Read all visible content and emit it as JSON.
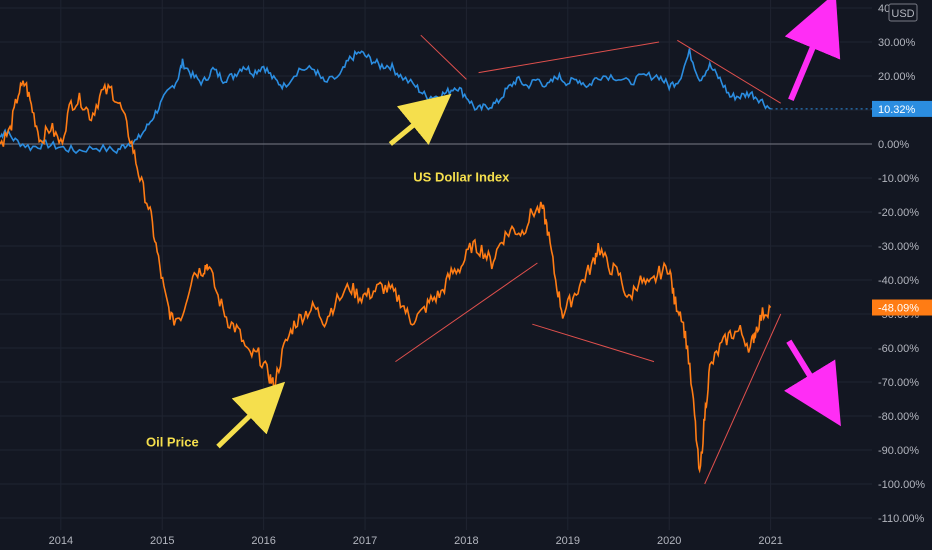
{
  "chart_data": {
    "type": "line",
    "currency": "USD",
    "colors": {
      "background": "#131722",
      "grid": "#1f2431",
      "zero_line": "#787b86",
      "dollar": "#2b8de0",
      "oil": "#ff7c14",
      "trendline": "#e0504d",
      "annotation_arrow": "#f5df4d",
      "forecast_arrow": "#ff2df5"
    },
    "y_axis": {
      "ylim": [
        -110,
        40
      ],
      "ticks": [
        40,
        30,
        20,
        10,
        0,
        -10,
        -20,
        -30,
        -40,
        -50,
        -60,
        -70,
        -80,
        -90,
        -100,
        -110
      ],
      "tick_labels": [
        "40.00%",
        "30.00%",
        "20.00%",
        "10.00%",
        "0.00%",
        "-10.00%",
        "-20.00%",
        "-30.00%",
        "-40.00%",
        "-50.00%",
        "-60.00%",
        "-70.00%",
        "-80.00%",
        "-90.00%",
        "-100.00%",
        "-110.00%"
      ]
    },
    "x_axis": {
      "xlim": [
        2013.4,
        2022.0
      ],
      "ticks": [
        2014,
        2015,
        2016,
        2017,
        2018,
        2019,
        2020,
        2021
      ],
      "tick_labels": [
        "2014",
        "2015",
        "2016",
        "2017",
        "2018",
        "2019",
        "2020",
        "2021"
      ]
    },
    "series": [
      {
        "name": "US Dollar Index",
        "color": "#2b8de0",
        "last_value_label": "10.32%",
        "last_value": 10.32,
        "points": [
          [
            2013.4,
            2
          ],
          [
            2013.45,
            4
          ],
          [
            2013.55,
            1
          ],
          [
            2013.7,
            -1
          ],
          [
            2013.85,
            0
          ],
          [
            2014.0,
            -1
          ],
          [
            2014.15,
            -2
          ],
          [
            2014.35,
            -1
          ],
          [
            2014.55,
            -2
          ],
          [
            2014.65,
            0
          ],
          [
            2014.75,
            1
          ],
          [
            2014.85,
            5
          ],
          [
            2014.95,
            10
          ],
          [
            2015.05,
            15
          ],
          [
            2015.15,
            19
          ],
          [
            2015.2,
            24
          ],
          [
            2015.3,
            20
          ],
          [
            2015.4,
            18
          ],
          [
            2015.5,
            22
          ],
          [
            2015.6,
            19
          ],
          [
            2015.7,
            20
          ],
          [
            2015.8,
            23
          ],
          [
            2015.9,
            21
          ],
          [
            2016.0,
            23
          ],
          [
            2016.1,
            19
          ],
          [
            2016.2,
            17
          ],
          [
            2016.35,
            22
          ],
          [
            2016.5,
            22
          ],
          [
            2016.6,
            18
          ],
          [
            2016.75,
            20
          ],
          [
            2016.85,
            25
          ],
          [
            2016.95,
            27
          ],
          [
            2017.05,
            25
          ],
          [
            2017.15,
            23
          ],
          [
            2017.25,
            23
          ],
          [
            2017.35,
            20
          ],
          [
            2017.5,
            17
          ],
          [
            2017.6,
            14
          ],
          [
            2017.7,
            14
          ],
          [
            2017.8,
            15
          ],
          [
            2017.9,
            17
          ],
          [
            2018.0,
            14
          ],
          [
            2018.1,
            10
          ],
          [
            2018.2,
            11
          ],
          [
            2018.3,
            12
          ],
          [
            2018.4,
            16
          ],
          [
            2018.5,
            19
          ],
          [
            2018.6,
            17
          ],
          [
            2018.7,
            19
          ],
          [
            2018.8,
            17
          ],
          [
            2018.9,
            20
          ],
          [
            2019.0,
            18
          ],
          [
            2019.1,
            19
          ],
          [
            2019.2,
            17
          ],
          [
            2019.3,
            20
          ],
          [
            2019.45,
            20
          ],
          [
            2019.6,
            18
          ],
          [
            2019.75,
            20
          ],
          [
            2019.9,
            20
          ],
          [
            2020.0,
            17
          ],
          [
            2020.1,
            19
          ],
          [
            2020.2,
            27
          ],
          [
            2020.3,
            19
          ],
          [
            2020.4,
            23
          ],
          [
            2020.5,
            19
          ],
          [
            2020.6,
            14
          ],
          [
            2020.7,
            14
          ],
          [
            2020.8,
            15
          ],
          [
            2020.9,
            13
          ],
          [
            2021.0,
            10.3
          ]
        ]
      },
      {
        "name": "Oil Price",
        "color": "#ff7c14",
        "last_value_label": "-48.09%",
        "last_value": -48.09,
        "points": [
          [
            2013.4,
            0
          ],
          [
            2013.5,
            4
          ],
          [
            2013.58,
            15
          ],
          [
            2013.65,
            18
          ],
          [
            2013.72,
            10
          ],
          [
            2013.8,
            1
          ],
          [
            2013.9,
            5
          ],
          [
            2014.0,
            0
          ],
          [
            2014.1,
            12
          ],
          [
            2014.2,
            13
          ],
          [
            2014.3,
            8
          ],
          [
            2014.4,
            15
          ],
          [
            2014.5,
            16
          ],
          [
            2014.6,
            10
          ],
          [
            2014.7,
            0
          ],
          [
            2014.78,
            -10
          ],
          [
            2014.88,
            -20
          ],
          [
            2014.95,
            -32
          ],
          [
            2015.03,
            -45
          ],
          [
            2015.1,
            -52
          ],
          [
            2015.2,
            -50
          ],
          [
            2015.3,
            -38
          ],
          [
            2015.4,
            -37
          ],
          [
            2015.45,
            -35
          ],
          [
            2015.55,
            -45
          ],
          [
            2015.65,
            -52
          ],
          [
            2015.75,
            -55
          ],
          [
            2015.85,
            -62
          ],
          [
            2015.95,
            -62
          ],
          [
            2016.05,
            -68
          ],
          [
            2016.1,
            -71
          ],
          [
            2016.2,
            -60
          ],
          [
            2016.3,
            -53
          ],
          [
            2016.4,
            -50
          ],
          [
            2016.5,
            -48
          ],
          [
            2016.6,
            -52
          ],
          [
            2016.7,
            -47
          ],
          [
            2016.85,
            -42
          ],
          [
            2016.95,
            -45
          ],
          [
            2017.05,
            -44
          ],
          [
            2017.15,
            -42
          ],
          [
            2017.25,
            -43
          ],
          [
            2017.35,
            -46
          ],
          [
            2017.45,
            -52
          ],
          [
            2017.55,
            -50
          ],
          [
            2017.65,
            -46
          ],
          [
            2017.75,
            -44
          ],
          [
            2017.85,
            -38
          ],
          [
            2017.95,
            -36
          ],
          [
            2018.05,
            -30
          ],
          [
            2018.15,
            -31
          ],
          [
            2018.25,
            -35
          ],
          [
            2018.35,
            -28
          ],
          [
            2018.45,
            -25
          ],
          [
            2018.55,
            -26
          ],
          [
            2018.65,
            -20
          ],
          [
            2018.75,
            -19
          ],
          [
            2018.8,
            -25
          ],
          [
            2018.88,
            -40
          ],
          [
            2018.95,
            -50
          ],
          [
            2019.05,
            -45
          ],
          [
            2019.15,
            -40
          ],
          [
            2019.25,
            -35
          ],
          [
            2019.3,
            -30
          ],
          [
            2019.4,
            -36
          ],
          [
            2019.5,
            -38
          ],
          [
            2019.6,
            -46
          ],
          [
            2019.7,
            -40
          ],
          [
            2019.8,
            -42
          ],
          [
            2019.9,
            -38
          ],
          [
            2020.0,
            -36
          ],
          [
            2020.05,
            -46
          ],
          [
            2020.12,
            -50
          ],
          [
            2020.18,
            -60
          ],
          [
            2020.25,
            -80
          ],
          [
            2020.3,
            -98
          ],
          [
            2020.35,
            -80
          ],
          [
            2020.4,
            -66
          ],
          [
            2020.5,
            -60
          ],
          [
            2020.6,
            -56
          ],
          [
            2020.7,
            -55
          ],
          [
            2020.8,
            -60
          ],
          [
            2020.85,
            -55
          ],
          [
            2020.92,
            -50
          ],
          [
            2021.0,
            -48.1
          ]
        ]
      }
    ],
    "annotations": [
      {
        "text": "US Dollar Index",
        "x": 2017.95,
        "y": -11,
        "arrow_from": [
          2017.25,
          0
        ],
        "arrow_to": [
          2017.7,
          11
        ]
      },
      {
        "text": "Oil Price",
        "x": 2015.1,
        "y": -89,
        "arrow_from": [
          2015.55,
          -89
        ],
        "arrow_to": [
          2016.07,
          -74
        ]
      }
    ],
    "trendlines": [
      {
        "from": [
          2017.55,
          32
        ],
        "to": [
          2018.0,
          19
        ]
      },
      {
        "from": [
          2018.12,
          21
        ],
        "to": [
          2019.9,
          30
        ]
      },
      {
        "from": [
          2020.08,
          30.5
        ],
        "to": [
          2021.1,
          12
        ]
      },
      {
        "from": [
          2017.3,
          -64
        ],
        "to": [
          2018.7,
          -35
        ]
      },
      {
        "from": [
          2018.65,
          -53
        ],
        "to": [
          2019.85,
          -64
        ]
      },
      {
        "from": [
          2020.35,
          -100
        ],
        "to": [
          2021.1,
          -50
        ]
      }
    ],
    "forecast_arrows": [
      {
        "from": [
          2021.2,
          13
        ],
        "to": [
          2021.55,
          38
        ],
        "direction": "up"
      },
      {
        "from": [
          2021.18,
          -58
        ],
        "to": [
          2021.57,
          -77
        ],
        "direction": "down"
      }
    ]
  }
}
